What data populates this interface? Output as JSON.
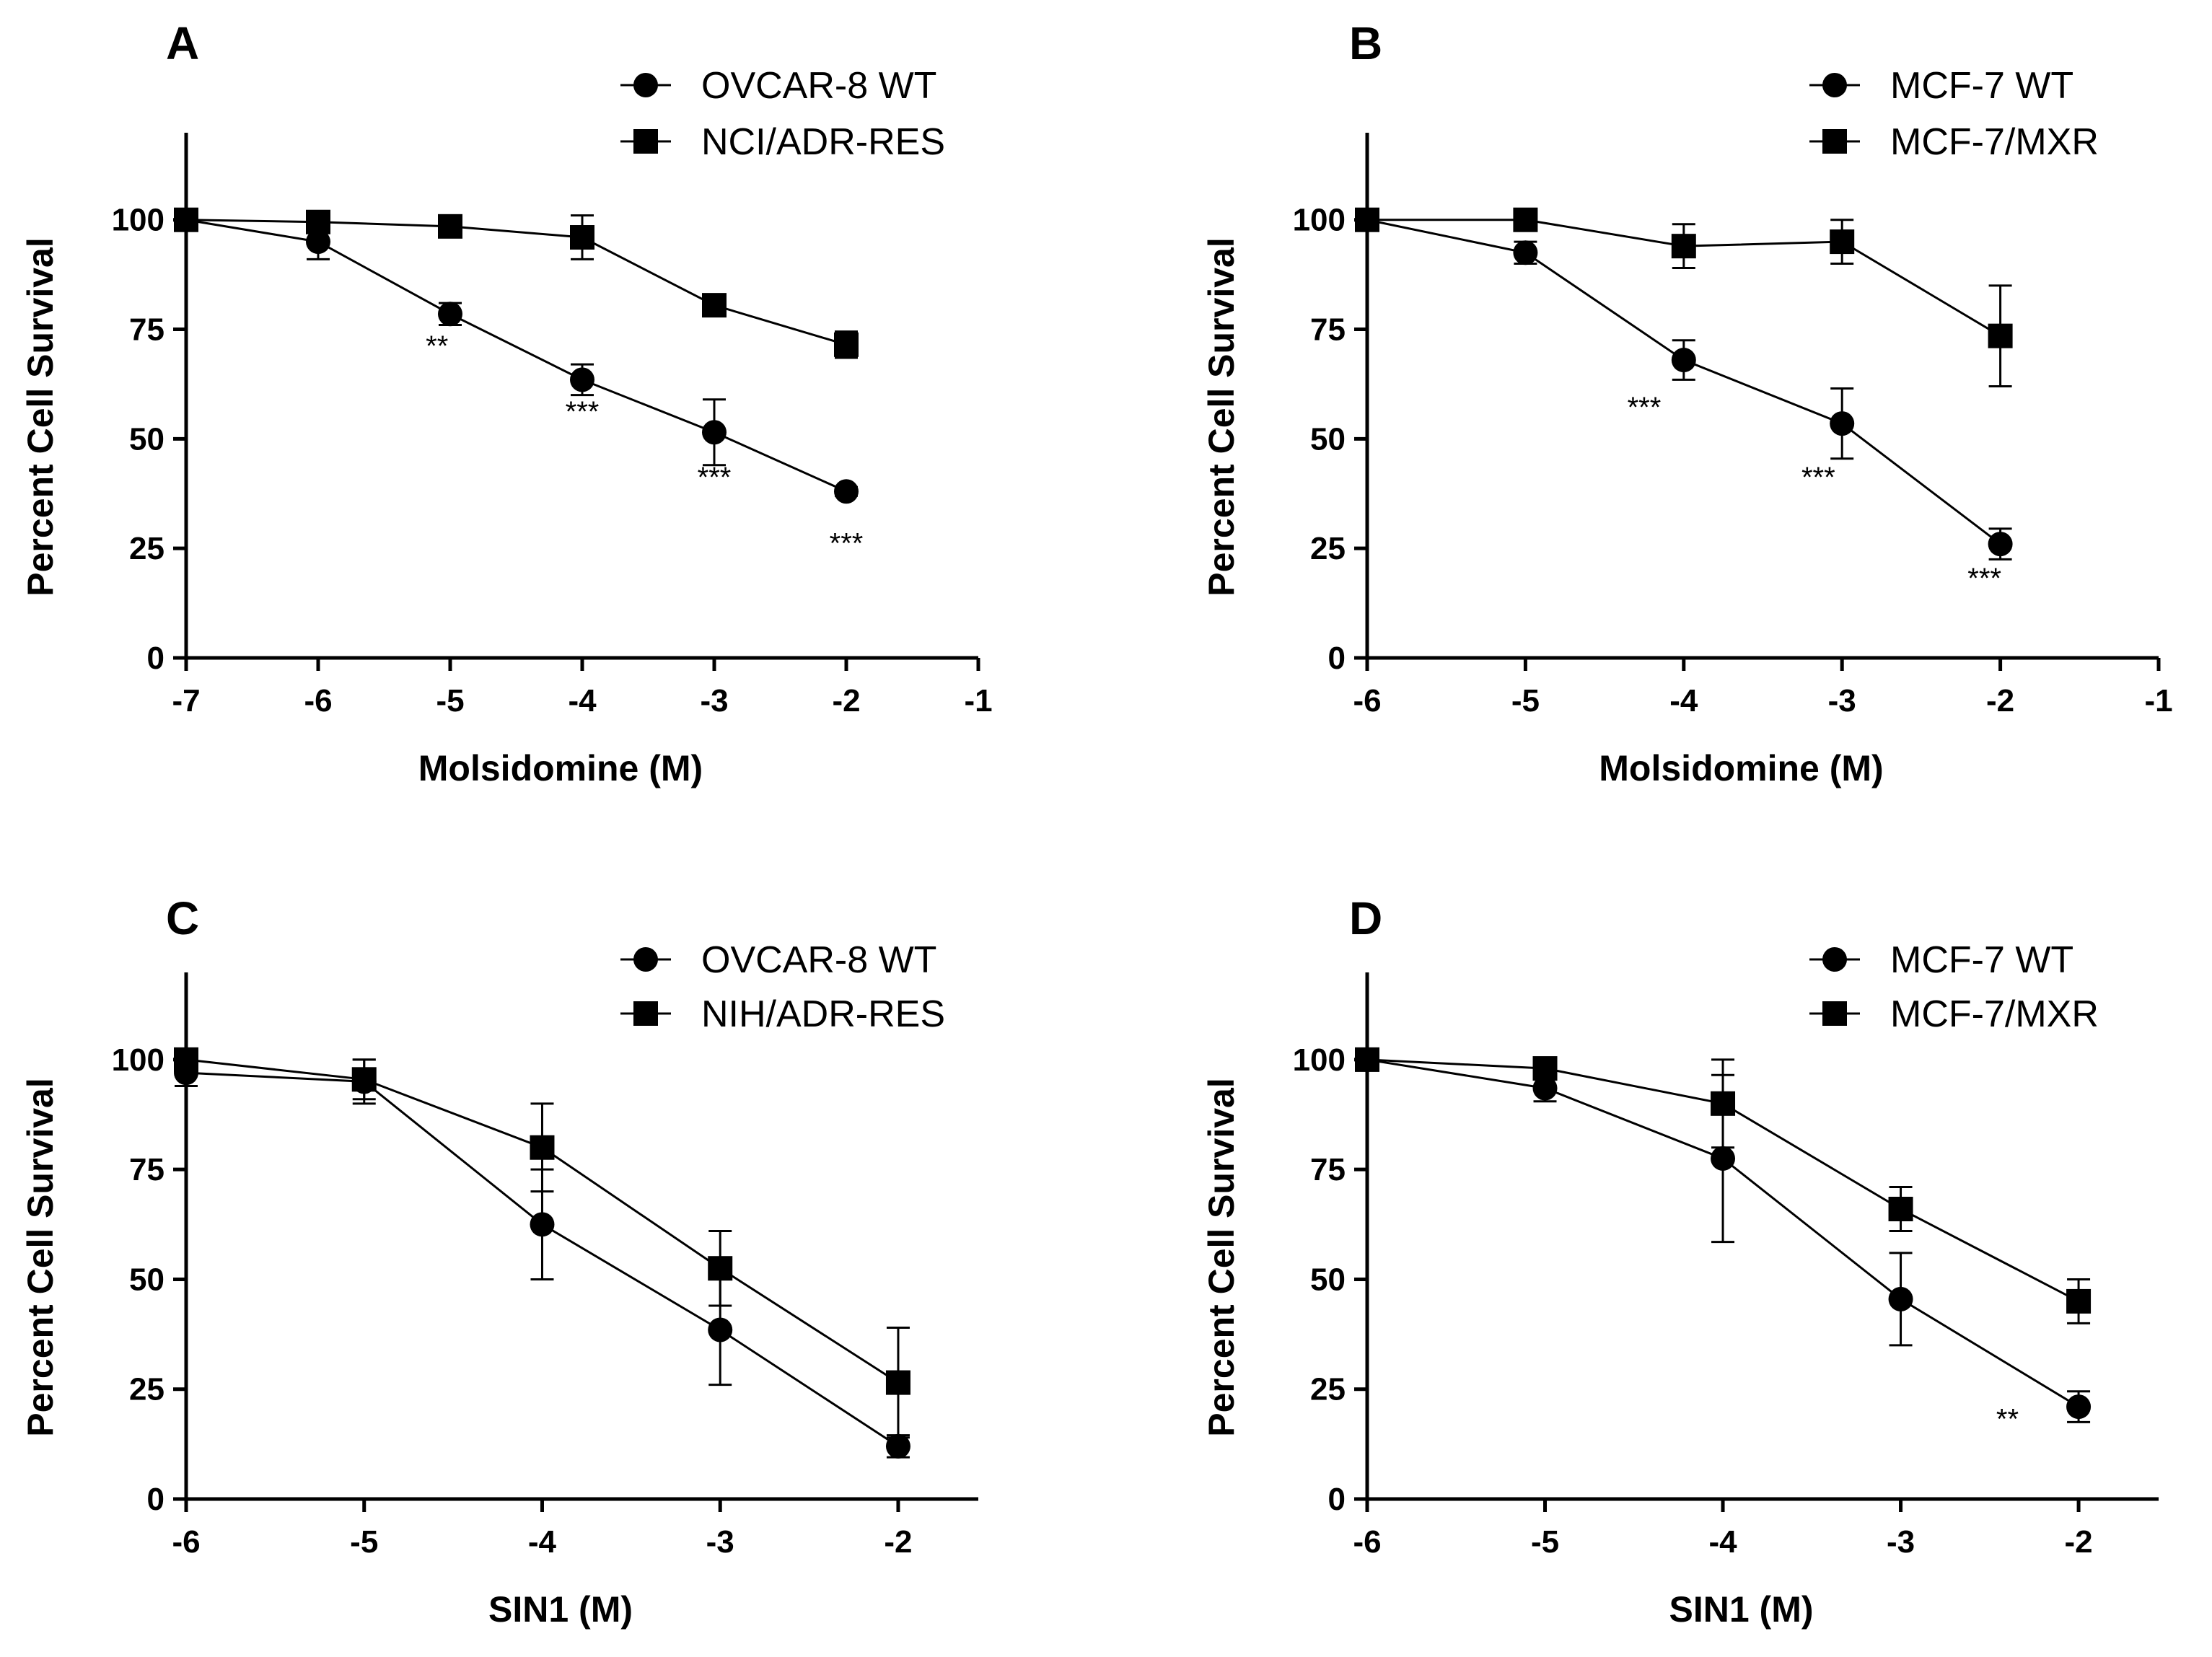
{
  "chart_data": [
    {
      "type": "line",
      "panel_label": "A",
      "xlabel": "Molsidomine (M)",
      "ylabel": "Percent Cell Survival",
      "xlim": [
        -7,
        -1
      ],
      "ylim": [
        0,
        110
      ],
      "x_ticks": [
        -7,
        -6,
        -5,
        -4,
        -3,
        -2,
        -1
      ],
      "y_ticks": [
        0,
        25,
        50,
        75,
        100
      ],
      "grid": false,
      "legend_position": "top-right",
      "series": [
        {
          "name": "OVCAR-8 WT",
          "marker": "circle",
          "x": [
            -7,
            -6,
            -5,
            -4,
            -3,
            -2
          ],
          "y": [
            100,
            95,
            78.5,
            63.5,
            51.5,
            38
          ],
          "err": [
            0,
            4,
            2.5,
            3.5,
            7.5,
            1
          ]
        },
        {
          "name": "NCI/ADR-RES",
          "marker": "square",
          "x": [
            -7,
            -6,
            -5,
            -4,
            -3,
            -2
          ],
          "y": [
            100,
            99.5,
            98.5,
            96,
            80.5,
            71.5
          ],
          "err": [
            0,
            1,
            1,
            5,
            2.5,
            3
          ]
        }
      ],
      "annotations": [
        {
          "text": "**",
          "x": -5.1,
          "y": 69
        },
        {
          "text": "***",
          "x": -4,
          "y": 54
        },
        {
          "text": "***",
          "x": -3,
          "y": 39
        },
        {
          "text": "***",
          "x": -2,
          "y": 24
        }
      ]
    },
    {
      "type": "line",
      "panel_label": "B",
      "xlabel": "Molsidomine (M)",
      "ylabel": "Percent Cell Survival",
      "xlim": [
        -6,
        -1
      ],
      "ylim": [
        0,
        110
      ],
      "x_ticks": [
        -6,
        -5,
        -4,
        -3,
        -2,
        -1
      ],
      "y_ticks": [
        0,
        25,
        50,
        75,
        100
      ],
      "grid": false,
      "legend_position": "top-right",
      "series": [
        {
          "name": "MCF-7 WT",
          "marker": "circle",
          "x": [
            -6,
            -5,
            -4,
            -3,
            -2
          ],
          "y": [
            100,
            92.5,
            68,
            53.5,
            26
          ],
          "err": [
            0,
            2.5,
            4.5,
            8,
            3.5
          ]
        },
        {
          "name": "MCF-7/MXR",
          "marker": "square",
          "x": [
            -6,
            -5,
            -4,
            -3,
            -2
          ],
          "y": [
            100,
            100,
            94,
            95,
            73.5
          ],
          "err": [
            0,
            0.5,
            5,
            5,
            11.5
          ]
        }
      ],
      "annotations": [
        {
          "text": "***",
          "x": -4.25,
          "y": 55
        },
        {
          "text": "***",
          "x": -3.15,
          "y": 39
        },
        {
          "text": "***",
          "x": -2.1,
          "y": 16
        }
      ]
    },
    {
      "type": "line",
      "panel_label": "C",
      "xlabel": "SIN1 (M)",
      "ylabel": "Percent Cell Survival",
      "xlim": [
        -6,
        -1.55
      ],
      "ylim": [
        0,
        110
      ],
      "x_ticks": [
        -6,
        -5,
        -4,
        -3,
        -2
      ],
      "y_ticks": [
        0,
        25,
        50,
        75,
        100
      ],
      "grid": false,
      "legend_position": "top-right",
      "series": [
        {
          "name": "OVCAR-8 WT",
          "marker": "circle",
          "x": [
            -6,
            -5,
            -4,
            -3,
            -2
          ],
          "y": [
            97,
            95,
            62.5,
            38.5,
            12
          ],
          "err": [
            3,
            5,
            12.5,
            12.5,
            2.5
          ]
        },
        {
          "name": "NIH/ADR-RES",
          "marker": "square",
          "x": [
            -6,
            -5,
            -4,
            -3,
            -2
          ],
          "y": [
            100,
            95.5,
            80,
            52.5,
            26.5
          ],
          "err": [
            0,
            4.5,
            10,
            8.5,
            12.5
          ]
        }
      ],
      "annotations": []
    },
    {
      "type": "line",
      "panel_label": "D",
      "xlabel": "SIN1 (M)",
      "ylabel": "Percent Cell Survival",
      "xlim": [
        -6,
        -1.55
      ],
      "ylim": [
        0,
        110
      ],
      "x_ticks": [
        -6,
        -5,
        -4,
        -3,
        -2
      ],
      "y_ticks": [
        0,
        25,
        50,
        75,
        100
      ],
      "grid": false,
      "legend_position": "top-right",
      "series": [
        {
          "name": "MCF-7 WT",
          "marker": "circle",
          "x": [
            -6,
            -5,
            -4,
            -3,
            -2
          ],
          "y": [
            100,
            93.5,
            77.5,
            45.5,
            21
          ],
          "err": [
            0,
            3,
            19,
            10.5,
            3.5
          ]
        },
        {
          "name": "MCF-7/MXR",
          "marker": "square",
          "x": [
            -6,
            -5,
            -4,
            -3,
            -2
          ],
          "y": [
            100,
            98,
            90,
            66,
            45
          ],
          "err": [
            0,
            2,
            10,
            5,
            5
          ]
        }
      ],
      "annotations": [
        {
          "text": "**",
          "x": -2.4,
          "y": 16
        }
      ]
    }
  ]
}
